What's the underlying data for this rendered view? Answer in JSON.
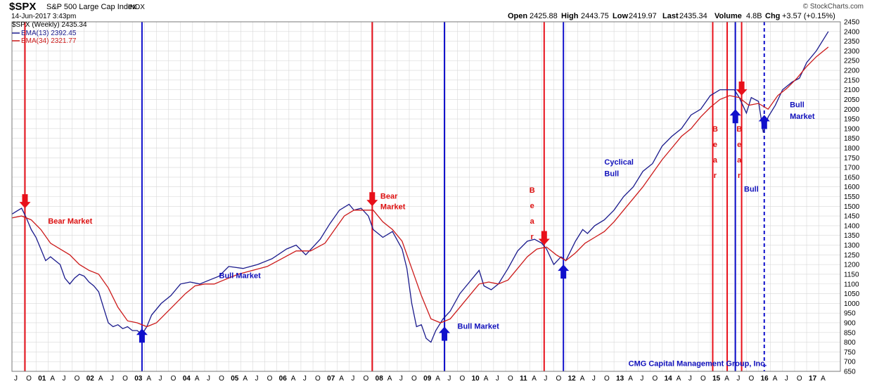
{
  "header": {
    "symbol": "$SPX",
    "name": "S&P 500 Large Cap Index",
    "exchange": "INDX",
    "datetime": "14-Jun-2017 3:43pm",
    "watermark": "© StockCharts.com",
    "quote": {
      "open_label": "Open",
      "open": "2425.88",
      "high_label": "High",
      "high": "2443.75",
      "low_label": "Low",
      "low": "2419.97",
      "last_label": "Last",
      "last": "2435.34",
      "volume_label": "Volume",
      "volume": "4.8B",
      "chg_label": "Chg",
      "chg": "+3.57 (+0.15%)"
    }
  },
  "legend": {
    "price": "$SPX (Weekly) 2435.34",
    "ema13": "EMA(13) 2392.45",
    "ema34": "EMA(34) 2321.77"
  },
  "colors": {
    "price": "#1a1a8c",
    "ema13": "#1a1a8c",
    "ema34": "#cc1a1a",
    "bear": "#e8101a",
    "bull": "#1010cc",
    "grid": "#d8d8d8",
    "text_red": "#dd1111",
    "text_blue": "#1111bb"
  },
  "annotations": [
    {
      "text": "Bear Market",
      "color": "red",
      "date": 2001.25,
      "price": 1410
    },
    {
      "text": "Bull Market",
      "color": "blue",
      "date": 2004.8,
      "price": 1130
    },
    {
      "text": "Bear",
      "color": "red",
      "date": 2008.15,
      "price": 1540
    },
    {
      "text": "Market",
      "color": "red",
      "date": 2008.15,
      "price": 1485
    },
    {
      "text": "Bull Market",
      "color": "blue",
      "date": 2009.75,
      "price": 870
    },
    {
      "text": "Cyclical",
      "color": "blue",
      "date": 2012.8,
      "price": 1715
    },
    {
      "text": "Bull",
      "color": "blue",
      "date": 2012.8,
      "price": 1655
    },
    {
      "text": "Bull",
      "color": "blue",
      "date": 2016.65,
      "price": 2010
    },
    {
      "text": "Market",
      "color": "blue",
      "date": 2016.65,
      "price": 1950
    },
    {
      "text": "Bull",
      "color": "blue",
      "date": 2015.7,
      "price": 1575
    },
    {
      "text": "CMG Capital Management Group, Inc.",
      "color": "blue",
      "date": 2013.3,
      "price": 677
    }
  ],
  "vertical_annotations": [
    {
      "letters": [
        "B",
        "e",
        "a",
        "r"
      ],
      "color": "red",
      "date": 2011.3,
      "price_top": 1570
    },
    {
      "letters": [
        "B",
        "e",
        "a",
        "r"
      ],
      "color": "red",
      "date": 2015.1,
      "price_top": 1885
    },
    {
      "letters": [
        "B",
        "e",
        "a",
        "r"
      ],
      "color": "red",
      "date": 2015.6,
      "price_top": 1885
    }
  ],
  "chart_data": {
    "type": "line",
    "title": "$SPX S&P 500 Large Cap Index INDX",
    "xlabel": "",
    "ylabel": "",
    "ylim": [
      650,
      2450
    ],
    "xlim": [
      2000.5,
      2017.7
    ],
    "y_ticks": [
      650,
      700,
      750,
      800,
      850,
      900,
      950,
      1000,
      1050,
      1100,
      1150,
      1200,
      1250,
      1300,
      1350,
      1400,
      1450,
      1500,
      1550,
      1600,
      1650,
      1700,
      1750,
      1800,
      1850,
      1900,
      1950,
      2000,
      2050,
      2100,
      2150,
      2200,
      2250,
      2300,
      2350,
      2400,
      2450
    ],
    "x_tick_labels": [
      {
        "label": "J",
        "x": 2000.5
      },
      {
        "label": "O",
        "x": 2000.75
      },
      {
        "label": "01",
        "x": 2001.0
      },
      {
        "label": "A",
        "x": 2001.25
      },
      {
        "label": "J",
        "x": 2001.5
      },
      {
        "label": "O",
        "x": 2001.75
      },
      {
        "label": "02",
        "x": 2002.0
      },
      {
        "label": "A",
        "x": 2002.25
      },
      {
        "label": "J",
        "x": 2002.5
      },
      {
        "label": "O",
        "x": 2002.75
      },
      {
        "label": "03",
        "x": 2003.0
      },
      {
        "label": "A",
        "x": 2003.25
      },
      {
        "label": "J",
        "x": 2003.5
      },
      {
        "label": "O",
        "x": 2003.75
      },
      {
        "label": "04",
        "x": 2004.0
      },
      {
        "label": "A",
        "x": 2004.25
      },
      {
        "label": "J",
        "x": 2004.5
      },
      {
        "label": "O",
        "x": 2004.75
      },
      {
        "label": "05",
        "x": 2005.0
      },
      {
        "label": "A",
        "x": 2005.25
      },
      {
        "label": "J",
        "x": 2005.5
      },
      {
        "label": "O",
        "x": 2005.75
      },
      {
        "label": "06",
        "x": 2006.0
      },
      {
        "label": "A",
        "x": 2006.25
      },
      {
        "label": "J",
        "x": 2006.5
      },
      {
        "label": "O",
        "x": 2006.75
      },
      {
        "label": "07",
        "x": 2007.0
      },
      {
        "label": "A",
        "x": 2007.25
      },
      {
        "label": "J",
        "x": 2007.5
      },
      {
        "label": "O",
        "x": 2007.75
      },
      {
        "label": "08",
        "x": 2008.0
      },
      {
        "label": "A",
        "x": 2008.25
      },
      {
        "label": "J",
        "x": 2008.5
      },
      {
        "label": "O",
        "x": 2008.75
      },
      {
        "label": "09",
        "x": 2009.0
      },
      {
        "label": "A",
        "x": 2009.25
      },
      {
        "label": "J",
        "x": 2009.5
      },
      {
        "label": "O",
        "x": 2009.75
      },
      {
        "label": "10",
        "x": 2010.0
      },
      {
        "label": "A",
        "x": 2010.25
      },
      {
        "label": "J",
        "x": 2010.5
      },
      {
        "label": "O",
        "x": 2010.75
      },
      {
        "label": "11",
        "x": 2011.0
      },
      {
        "label": "A",
        "x": 2011.25
      },
      {
        "label": "J",
        "x": 2011.5
      },
      {
        "label": "O",
        "x": 2011.75
      },
      {
        "label": "12",
        "x": 2012.0
      },
      {
        "label": "A",
        "x": 2012.25
      },
      {
        "label": "J",
        "x": 2012.5
      },
      {
        "label": "O",
        "x": 2012.75
      },
      {
        "label": "13",
        "x": 2013.0
      },
      {
        "label": "A",
        "x": 2013.25
      },
      {
        "label": "J",
        "x": 2013.5
      },
      {
        "label": "O",
        "x": 2013.75
      },
      {
        "label": "14",
        "x": 2014.0
      },
      {
        "label": "A",
        "x": 2014.25
      },
      {
        "label": "J",
        "x": 2014.5
      },
      {
        "label": "O",
        "x": 2014.75
      },
      {
        "label": "15",
        "x": 2015.0
      },
      {
        "label": "A",
        "x": 2015.25
      },
      {
        "label": "J",
        "x": 2015.5
      },
      {
        "label": "O",
        "x": 2015.75
      },
      {
        "label": "16",
        "x": 2016.0
      },
      {
        "label": "A",
        "x": 2016.25
      },
      {
        "label": "J",
        "x": 2016.5
      },
      {
        "label": "O",
        "x": 2016.75
      },
      {
        "label": "17",
        "x": 2017.0
      },
      {
        "label": "A",
        "x": 2017.25
      }
    ],
    "series": [
      {
        "name": "$SPX (Weekly)",
        "color": "#1a1a8c",
        "x": [
          2000.5,
          2000.6,
          2000.7,
          2000.8,
          2000.9,
          2001.0,
          2001.1,
          2001.2,
          2001.3,
          2001.4,
          2001.5,
          2001.6,
          2001.7,
          2001.8,
          2001.9,
          2002.0,
          2002.1,
          2002.2,
          2002.3,
          2002.4,
          2002.5,
          2002.6,
          2002.7,
          2002.8,
          2002.9,
          2003.0,
          2003.1,
          2003.2,
          2003.3,
          2003.4,
          2003.6,
          2003.8,
          2004.0,
          2004.2,
          2004.4,
          2004.6,
          2004.8,
          2005.0,
          2005.3,
          2005.6,
          2005.9,
          2006.2,
          2006.4,
          2006.6,
          2006.9,
          2007.1,
          2007.3,
          2007.5,
          2007.6,
          2007.75,
          2007.9,
          2008.0,
          2008.2,
          2008.4,
          2008.6,
          2008.7,
          2008.8,
          2008.9,
          2009.0,
          2009.1,
          2009.2,
          2009.3,
          2009.45,
          2009.6,
          2009.8,
          2010.0,
          2010.2,
          2010.3,
          2010.45,
          2010.6,
          2010.8,
          2011.0,
          2011.2,
          2011.35,
          2011.5,
          2011.6,
          2011.75,
          2011.9,
          2012.0,
          2012.2,
          2012.35,
          2012.45,
          2012.6,
          2012.8,
          2013.0,
          2013.2,
          2013.4,
          2013.6,
          2013.8,
          2014.0,
          2014.2,
          2014.4,
          2014.6,
          2014.8,
          2015.0,
          2015.2,
          2015.4,
          2015.5,
          2015.6,
          2015.75,
          2015.85,
          2016.0,
          2016.1,
          2016.2,
          2016.35,
          2016.5,
          2016.7,
          2016.85,
          2017.0,
          2017.2,
          2017.4,
          2017.45
        ],
        "y": [
          1460,
          1475,
          1490,
          1440,
          1380,
          1340,
          1280,
          1220,
          1240,
          1220,
          1200,
          1130,
          1100,
          1130,
          1150,
          1140,
          1110,
          1090,
          1060,
          980,
          900,
          880,
          890,
          870,
          880,
          860,
          860,
          840,
          880,
          940,
          1000,
          1040,
          1100,
          1110,
          1100,
          1120,
          1140,
          1190,
          1180,
          1200,
          1230,
          1280,
          1300,
          1250,
          1330,
          1410,
          1480,
          1510,
          1480,
          1490,
          1450,
          1380,
          1340,
          1370,
          1280,
          1180,
          1000,
          880,
          890,
          820,
          800,
          860,
          920,
          960,
          1050,
          1110,
          1170,
          1090,
          1070,
          1100,
          1180,
          1270,
          1320,
          1330,
          1310,
          1280,
          1200,
          1240,
          1220,
          1320,
          1380,
          1360,
          1400,
          1430,
          1480,
          1550,
          1600,
          1680,
          1720,
          1810,
          1860,
          1900,
          1970,
          2000,
          2070,
          2100,
          2100,
          2100,
          2060,
          1980,
          2060,
          2040,
          1880,
          1960,
          2020,
          2100,
          2140,
          2160,
          2240,
          2300,
          2380,
          2400
        ]
      },
      {
        "name": "EMA(13)",
        "color": "#1a1a8c",
        "x": [],
        "y": []
      },
      {
        "name": "EMA(34)",
        "color": "#cc1a1a",
        "x": [
          2000.5,
          2000.7,
          2000.9,
          2001.1,
          2001.3,
          2001.5,
          2001.7,
          2001.9,
          2002.1,
          2002.3,
          2002.5,
          2002.7,
          2002.9,
          2003.1,
          2003.3,
          2003.5,
          2003.7,
          2003.9,
          2004.1,
          2004.3,
          2004.5,
          2004.7,
          2004.9,
          2005.2,
          2005.5,
          2005.8,
          2006.1,
          2006.4,
          2006.7,
          2007.0,
          2007.2,
          2007.4,
          2007.6,
          2007.8,
          2008.0,
          2008.2,
          2008.4,
          2008.6,
          2008.8,
          2009.0,
          2009.2,
          2009.4,
          2009.6,
          2009.8,
          2010.0,
          2010.2,
          2010.4,
          2010.6,
          2010.8,
          2011.0,
          2011.2,
          2011.4,
          2011.6,
          2011.8,
          2012.0,
          2012.2,
          2012.4,
          2012.6,
          2012.8,
          2013.0,
          2013.2,
          2013.4,
          2013.6,
          2013.8,
          2014.0,
          2014.2,
          2014.4,
          2014.6,
          2014.8,
          2015.0,
          2015.2,
          2015.4,
          2015.6,
          2015.8,
          2016.0,
          2016.2,
          2016.4,
          2016.6,
          2016.8,
          2017.0,
          2017.2,
          2017.45
        ],
        "y": [
          1440,
          1450,
          1430,
          1380,
          1310,
          1280,
          1250,
          1200,
          1170,
          1150,
          1080,
          980,
          910,
          900,
          880,
          900,
          950,
          1000,
          1050,
          1090,
          1100,
          1100,
          1120,
          1150,
          1170,
          1190,
          1230,
          1270,
          1270,
          1310,
          1380,
          1450,
          1480,
          1480,
          1480,
          1420,
          1380,
          1320,
          1180,
          1040,
          920,
          900,
          920,
          980,
          1040,
          1100,
          1110,
          1100,
          1120,
          1180,
          1240,
          1280,
          1290,
          1250,
          1220,
          1260,
          1310,
          1340,
          1370,
          1420,
          1480,
          1540,
          1600,
          1670,
          1740,
          1800,
          1860,
          1900,
          1960,
          2010,
          2050,
          2070,
          2060,
          2020,
          2030,
          2000,
          2070,
          2110,
          2160,
          2220,
          2270,
          2320
        ]
      }
    ],
    "events": [
      {
        "type": "bear",
        "date": 2000.77,
        "arrow": "down",
        "price": 1490
      },
      {
        "type": "bull",
        "date": 2003.2,
        "arrow": "up",
        "price": 870
      },
      {
        "type": "bear",
        "date": 2007.98,
        "arrow": "down",
        "price": 1500
      },
      {
        "type": "bull",
        "date": 2009.48,
        "arrow": "up",
        "price": 880
      },
      {
        "type": "bear",
        "date": 2011.55,
        "arrow": "down",
        "price": 1300
      },
      {
        "type": "bull",
        "date": 2011.95,
        "arrow": "up",
        "price": 1200
      },
      {
        "type": "bear",
        "date": 2015.05,
        "arrow": "none",
        "price": 0
      },
      {
        "type": "bear",
        "date": 2015.35,
        "arrow": "none",
        "price": 0
      },
      {
        "type": "bear",
        "date": 2015.65,
        "arrow": "down",
        "price": 2070
      },
      {
        "type": "bull",
        "date": 2015.52,
        "arrow": "up",
        "price": 2000
      },
      {
        "type": "bull",
        "date": 2016.12,
        "arrow": "up",
        "price": 1970,
        "dashed": true
      }
    ]
  }
}
